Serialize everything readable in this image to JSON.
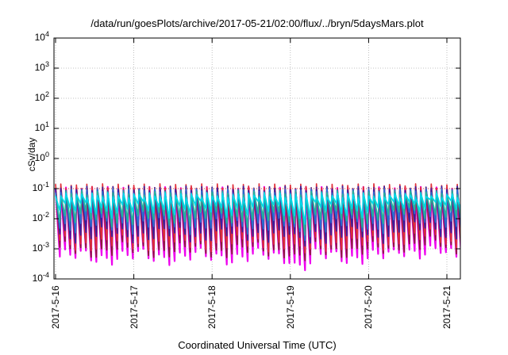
{
  "chart_data": {
    "type": "line",
    "title": "/data/run/goesPlots/archive/2017-05-21/02:00/flux/../bryn/5daysMars.plot",
    "xlabel": "Coordinated Universal Time (UTC)",
    "ylabel": "cSv/day",
    "yscale": "log",
    "ylim": [
      0.0001,
      10000
    ],
    "xlim": [
      "2017-5-16",
      "2017-5-21 03:00"
    ],
    "grid": true,
    "legend": "none",
    "x_ticks": [
      "2017-5-16",
      "2017-5-17",
      "2017-5-18",
      "2017-5-19",
      "2017-5-20",
      "2017-5-21"
    ],
    "y_ticks": [
      {
        "base": "10",
        "exp": "-4"
      },
      {
        "base": "10",
        "exp": "-3"
      },
      {
        "base": "10",
        "exp": "-2"
      },
      {
        "base": "10",
        "exp": "-1"
      },
      {
        "base": "10",
        "exp": "0"
      },
      {
        "base": "10",
        "exp": "1"
      },
      {
        "base": "10",
        "exp": "2"
      },
      {
        "base": "10",
        "exp": "3"
      },
      {
        "base": "10",
        "exp": "4"
      }
    ],
    "reference_line": 0.1,
    "peak_interval_hours": 1.6,
    "series": [
      {
        "color": "#ee00ee",
        "peak": 0.095,
        "trough": 0.00055
      },
      {
        "color": "#8b1a3a",
        "peak": 0.09,
        "trough": 0.0009
      },
      {
        "color": "#e0303a",
        "peak": 0.12,
        "trough": 0.0015
      },
      {
        "color": "#3a1f9e",
        "peak": 0.1,
        "trough": 0.003
      },
      {
        "color": "#2a6fd0",
        "peak": 0.085,
        "trough": 0.006
      },
      {
        "color": "#24b39a",
        "peak": 0.07,
        "trough": 0.01
      },
      {
        "color": "#00d8e8",
        "peak": 0.06,
        "trough": 0.02
      }
    ]
  },
  "colors": {
    "reference_line": "#e0303a",
    "grid": "#b0b0b0",
    "axis": "#000000"
  }
}
